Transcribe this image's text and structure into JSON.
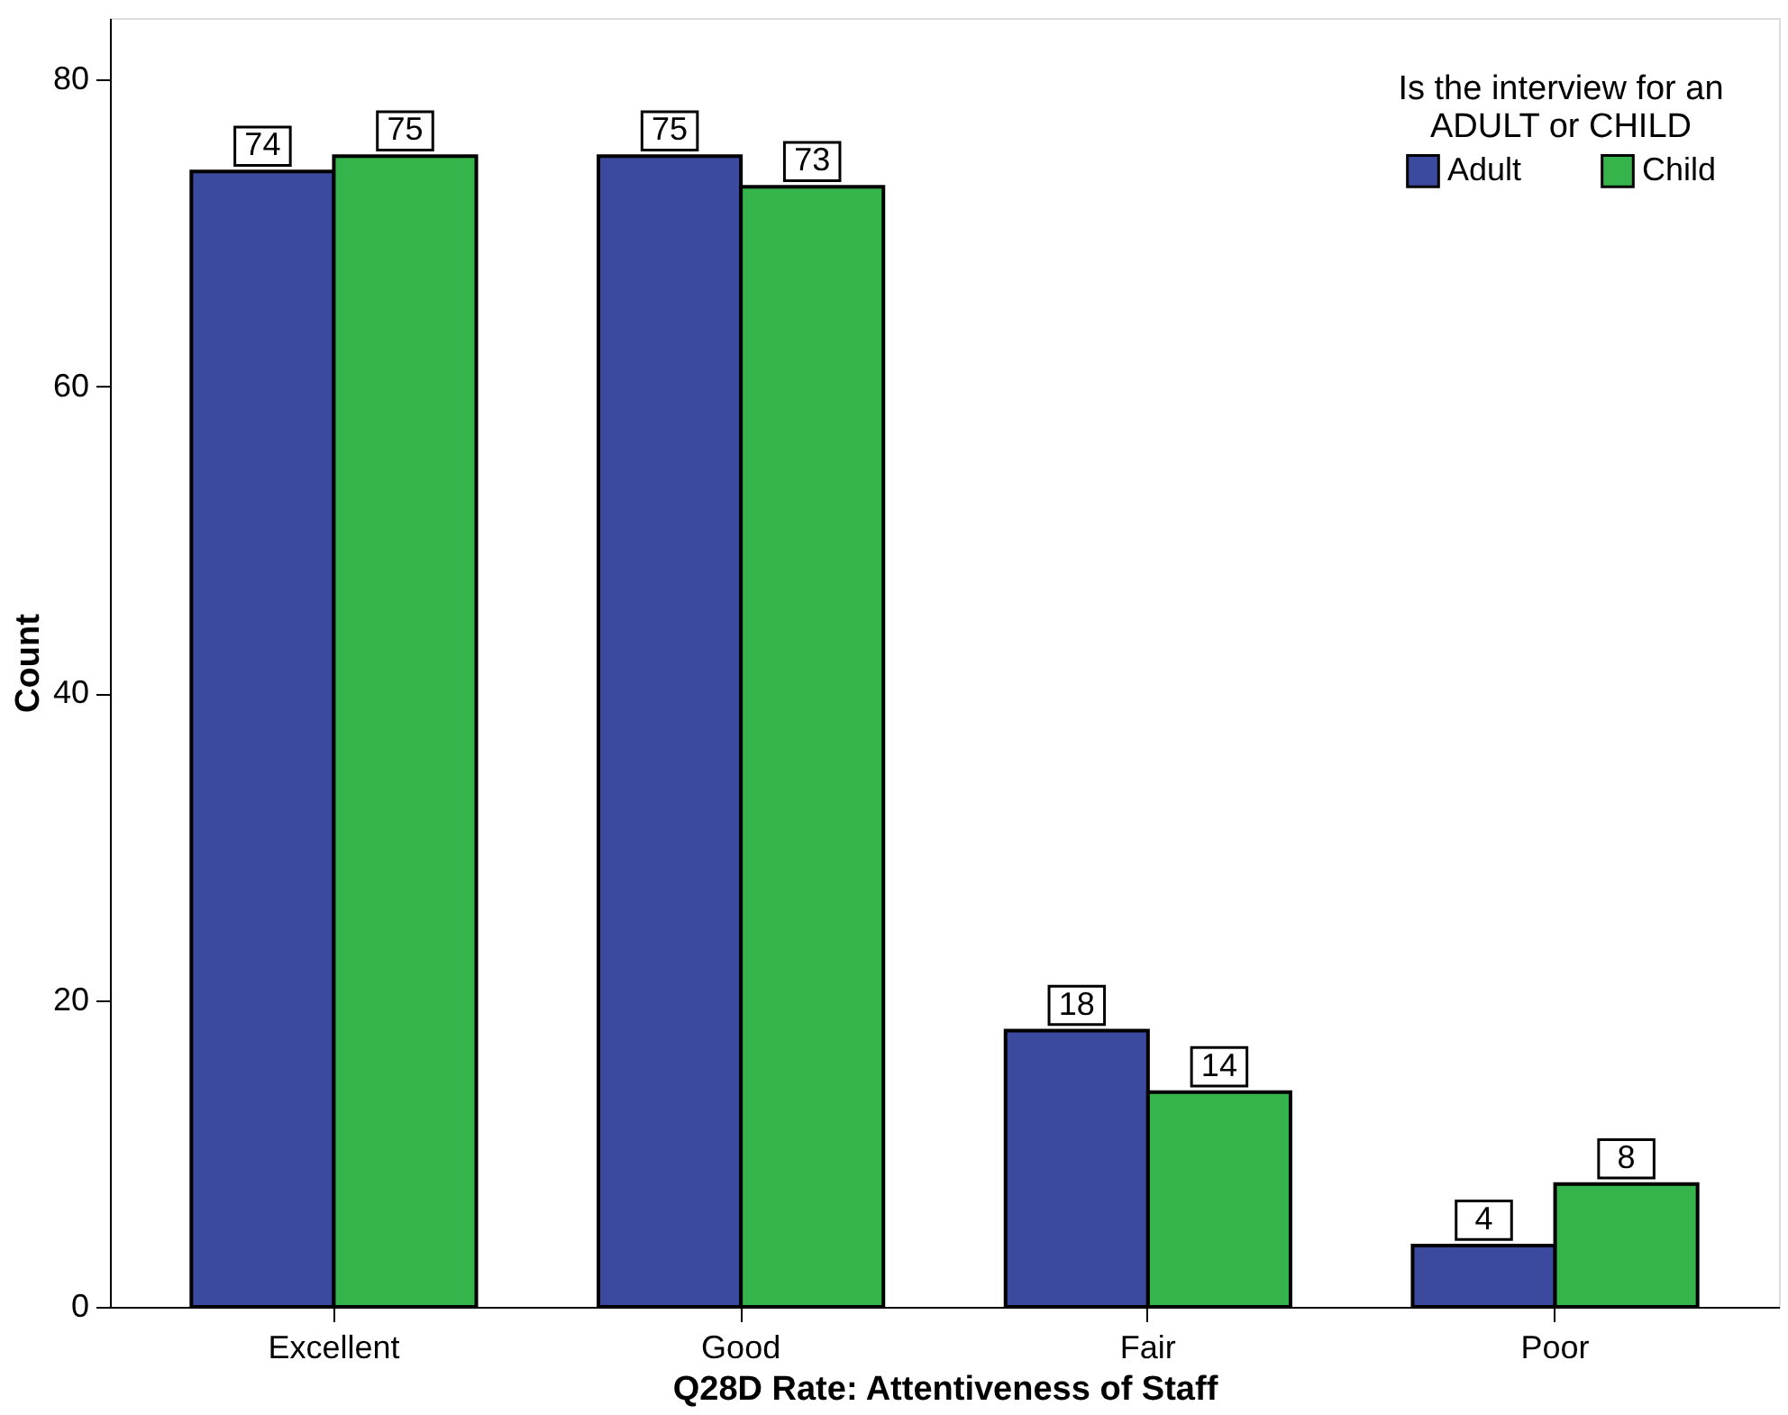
{
  "chart_data": {
    "type": "bar",
    "xlabel": "Q28D Rate: Attentiveness of Staff",
    "ylabel": "Count",
    "legend_title": "Is the interview for an\nADULT or CHILD",
    "categories": [
      "Excellent",
      "Good",
      "Fair",
      "Poor"
    ],
    "series": [
      {
        "name": "Adult",
        "color": "#3b4a9e",
        "values": [
          74,
          75,
          18,
          4
        ]
      },
      {
        "name": "Child",
        "color": "#34b44a",
        "values": [
          75,
          73,
          14,
          8
        ]
      }
    ],
    "ylim": [
      0,
      84
    ],
    "yticks": [
      0,
      20,
      40,
      60,
      80
    ],
    "grid": false,
    "legend": "top right",
    "data_labels": true
  }
}
